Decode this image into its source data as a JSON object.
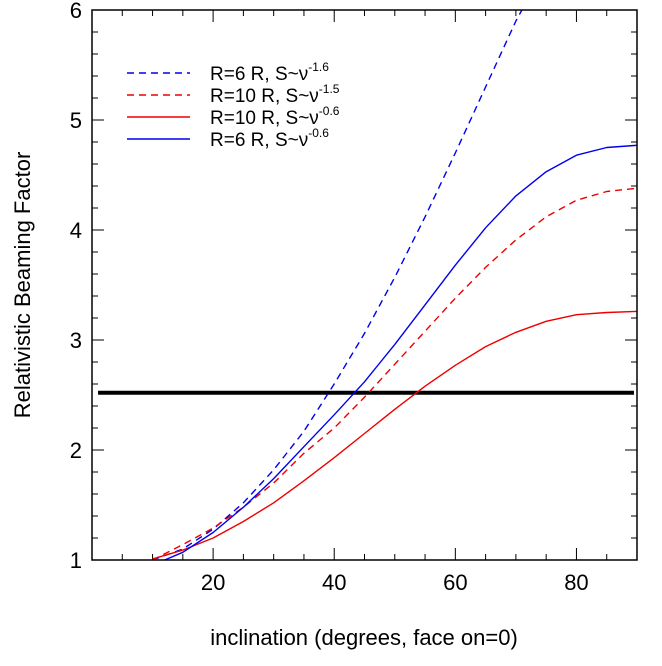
{
  "chart_data": {
    "type": "line",
    "title": "",
    "xlabel": "inclination (degrees, face on=0)",
    "ylabel": "Relativistic Beaming Factor",
    "xlim": [
      0,
      90
    ],
    "ylim": [
      1,
      6
    ],
    "x_ticks": [
      "20",
      "40",
      "60",
      "80"
    ],
    "y_ticks": [
      "1",
      "2",
      "3",
      "4",
      "5",
      "6"
    ],
    "legend_position": "top-left",
    "threshold": {
      "y": 2.52
    },
    "series": [
      {
        "name": "R=6 R_g, S_ν~ν^-1.6",
        "legend": {
          "a": "R=6 R",
          "b": ", S",
          "c": "~ν",
          "sup": "-1.6"
        },
        "color": "#0000ee",
        "dash": "dashed",
        "x": [
          10,
          15,
          20,
          25,
          30,
          35,
          40,
          45,
          50,
          55,
          60,
          65,
          70,
          71
        ],
        "y": [
          1.0,
          1.1,
          1.28,
          1.52,
          1.82,
          2.17,
          2.6,
          3.06,
          3.57,
          4.12,
          4.7,
          5.3,
          5.9,
          6.0
        ]
      },
      {
        "name": "R=10 R_g, S_ν~ν^-1.5",
        "legend": {
          "a": "R=10 R",
          "b": ", S",
          "c": "~ν",
          "sup": "-1.5"
        },
        "color": "#ee0000",
        "dash": "dashed",
        "x": [
          10,
          15,
          20,
          25,
          30,
          35,
          40,
          45,
          50,
          55,
          60,
          65,
          70,
          75,
          80,
          85,
          90
        ],
        "y": [
          1.0,
          1.14,
          1.29,
          1.48,
          1.7,
          1.97,
          2.2,
          2.48,
          2.78,
          3.08,
          3.38,
          3.66,
          3.91,
          4.12,
          4.27,
          4.35,
          4.38
        ]
      },
      {
        "name": "R=10 R_g, S_ν~ν^-0.6",
        "legend": {
          "a": "R=10 R",
          "b": ", S",
          "c": "~ν",
          "sup": "-0.6"
        },
        "color": "#ee0000",
        "dash": "solid",
        "x": [
          10,
          15,
          20,
          25,
          30,
          35,
          40,
          45,
          50,
          55,
          60,
          65,
          70,
          75,
          80,
          85,
          90
        ],
        "y": [
          1.01,
          1.09,
          1.2,
          1.35,
          1.52,
          1.72,
          1.93,
          2.15,
          2.37,
          2.58,
          2.77,
          2.94,
          3.07,
          3.17,
          3.23,
          3.25,
          3.26
        ]
      },
      {
        "name": "R=6 R_g, S_ν~ν^-0.6",
        "legend": {
          "a": "R=6 R",
          "b": ", S",
          "c": "~ν",
          "sup": "-0.6"
        },
        "color": "#0000ee",
        "dash": "solid",
        "x": [
          12,
          15,
          20,
          25,
          30,
          35,
          40,
          45,
          50,
          55,
          60,
          65,
          70,
          75,
          80,
          85,
          90
        ],
        "y": [
          1.0,
          1.07,
          1.25,
          1.48,
          1.74,
          2.03,
          2.32,
          2.62,
          2.96,
          3.32,
          3.68,
          4.02,
          4.31,
          4.53,
          4.68,
          4.75,
          4.77
        ]
      }
    ]
  }
}
